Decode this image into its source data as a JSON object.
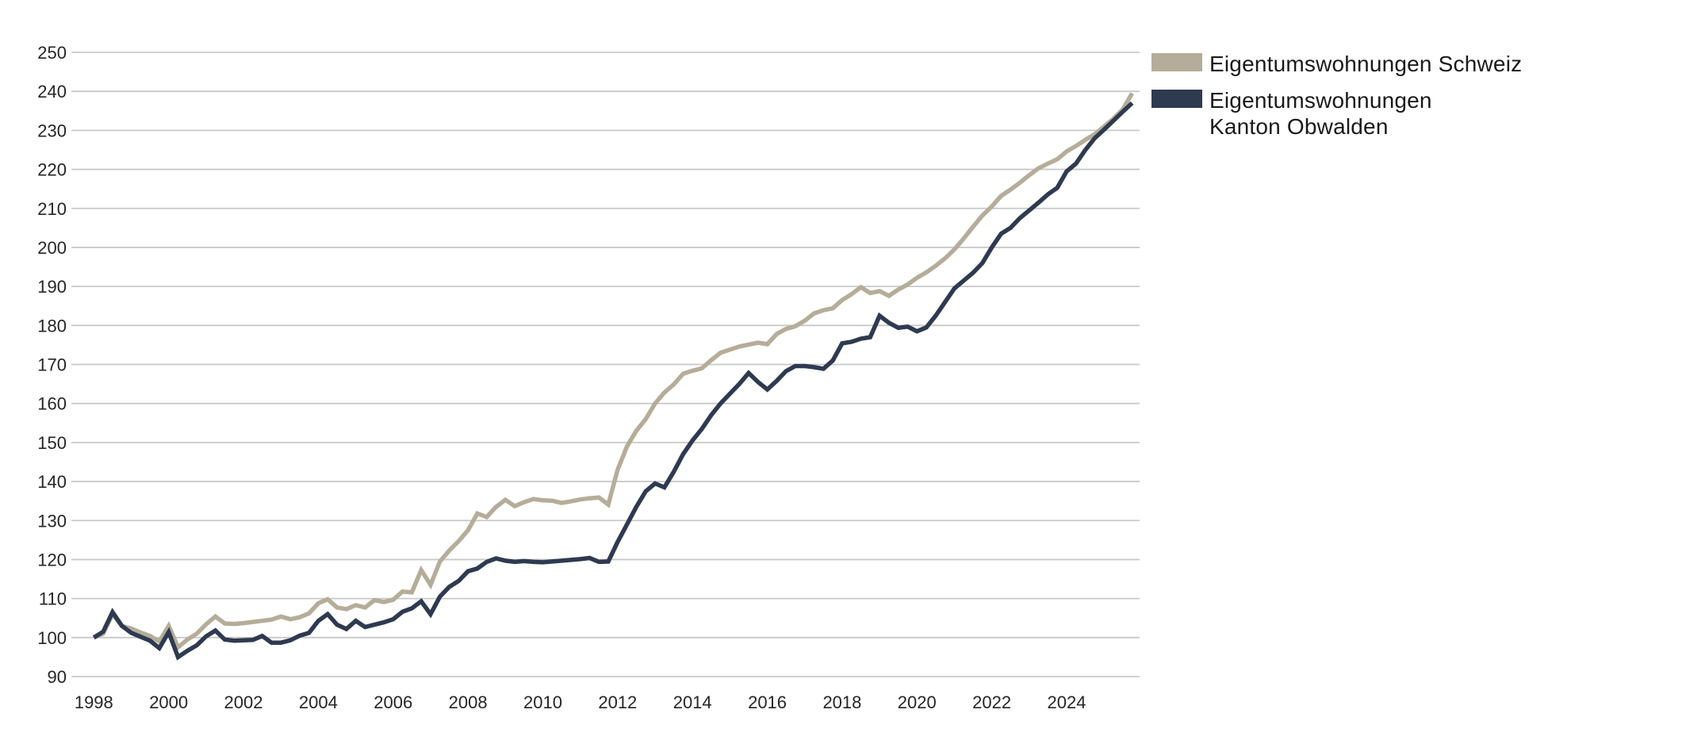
{
  "chart_data": {
    "type": "line",
    "title": "",
    "xlabel": "",
    "ylabel": "",
    "grid": "horizontal",
    "background_color": "#ffffff",
    "gridline_color": "#c9c9c9",
    "axis_text_color": "#262626",
    "ylim": [
      90,
      250
    ],
    "yticks": [
      90,
      100,
      110,
      120,
      130,
      140,
      150,
      160,
      170,
      180,
      190,
      200,
      210,
      220,
      230,
      240,
      250
    ],
    "xlim": [
      1997.4,
      2025.95
    ],
    "xticks": [
      1998,
      2000,
      2002,
      2004,
      2006,
      2008,
      2010,
      2012,
      2014,
      2016,
      2018,
      2020,
      2022,
      2024
    ],
    "x_start_year": 1998,
    "x_step_years": 0.25,
    "legend_position": "top-right-outside",
    "line_width": 5.5,
    "series": [
      {
        "name": "Eigentumswohnungen Schweiz",
        "color": "#b5ad99",
        "values": [
          100,
          101,
          106,
          103,
          102.3,
          101.3,
          100.4,
          99,
          103,
          97.5,
          99.5,
          101,
          103.4,
          105.4,
          103.6,
          103.5,
          103.7,
          104,
          104.3,
          104.6,
          105.4,
          104.7,
          105.2,
          106.2,
          108.8,
          109.8,
          107.7,
          107.3,
          108.3,
          107.7,
          109.6,
          109.1,
          109.7,
          111.8,
          111.6,
          117.3,
          113.5,
          119.5,
          122.3,
          124.7,
          127.5,
          131.8,
          130.9,
          133.5,
          135.3,
          133.7,
          134.7,
          135.5,
          135.2,
          135.1,
          134.5,
          134.9,
          135.4,
          135.7,
          135.9,
          134.1,
          143,
          149,
          153,
          156,
          160,
          162.8,
          164.9,
          167.6,
          168.4,
          169,
          171.1,
          173,
          173.8,
          174.6,
          175.1,
          175.6,
          175.2,
          177.8,
          179.1,
          179.8,
          181.2,
          183.1,
          183.9,
          184.4,
          186.5,
          188,
          189.8,
          188.3,
          188.8,
          187.6,
          189.2,
          190.5,
          192.2,
          193.6,
          195.3,
          197.2,
          199.5,
          202.3,
          205.3,
          208.2,
          210.5,
          213.2,
          214.8,
          216.6,
          218.5,
          220.3,
          221.5,
          222.6,
          224.6,
          226,
          227.6,
          229,
          231,
          233,
          235.4,
          239.5
        ]
      },
      {
        "name": "Eigentumswohnungen\nKanton Obwalden",
        "color": "#2e3a50",
        "values": [
          100,
          101.5,
          106.5,
          103,
          101.2,
          100.2,
          99.2,
          97.3,
          101.4,
          95,
          96.6,
          98,
          100.3,
          101.8,
          99.5,
          99.2,
          99.3,
          99.4,
          100.4,
          98.7,
          98.7,
          99.3,
          100.5,
          101.2,
          104.3,
          106,
          103.3,
          102.2,
          104.3,
          102.7,
          103.3,
          103.9,
          104.7,
          106.6,
          107.5,
          109.3,
          106,
          110.5,
          113,
          114.5,
          117,
          117.7,
          119.4,
          120.3,
          119.7,
          119.4,
          119.6,
          119.4,
          119.3,
          119.5,
          119.7,
          119.9,
          120.1,
          120.4,
          119.4,
          119.5,
          124.5,
          129,
          133.5,
          137.5,
          139.5,
          138.5,
          142.5,
          147,
          150.5,
          153.5,
          157,
          160,
          162.5,
          165,
          167.8,
          165.5,
          163.6,
          165.8,
          168.3,
          169.6,
          169.6,
          169.3,
          168.9,
          171,
          175.4,
          175.8,
          176.6,
          177,
          182.5,
          180.7,
          179.4,
          179.7,
          178.5,
          179.5,
          182.5,
          186,
          189.5,
          191.5,
          193.5,
          196,
          200,
          203.5,
          205,
          207.5,
          209.5,
          211.5,
          213.6,
          215.3,
          219.5,
          221.5,
          225,
          228,
          230.2,
          232.5,
          234.8,
          237
        ]
      }
    ]
  },
  "legend": {
    "items": [
      {
        "label": "Eigentumswohnungen Schweiz",
        "color": "#b5ad99"
      },
      {
        "label": "Eigentumswohnungen\nKanton Obwalden",
        "color": "#2e3a50"
      }
    ]
  }
}
